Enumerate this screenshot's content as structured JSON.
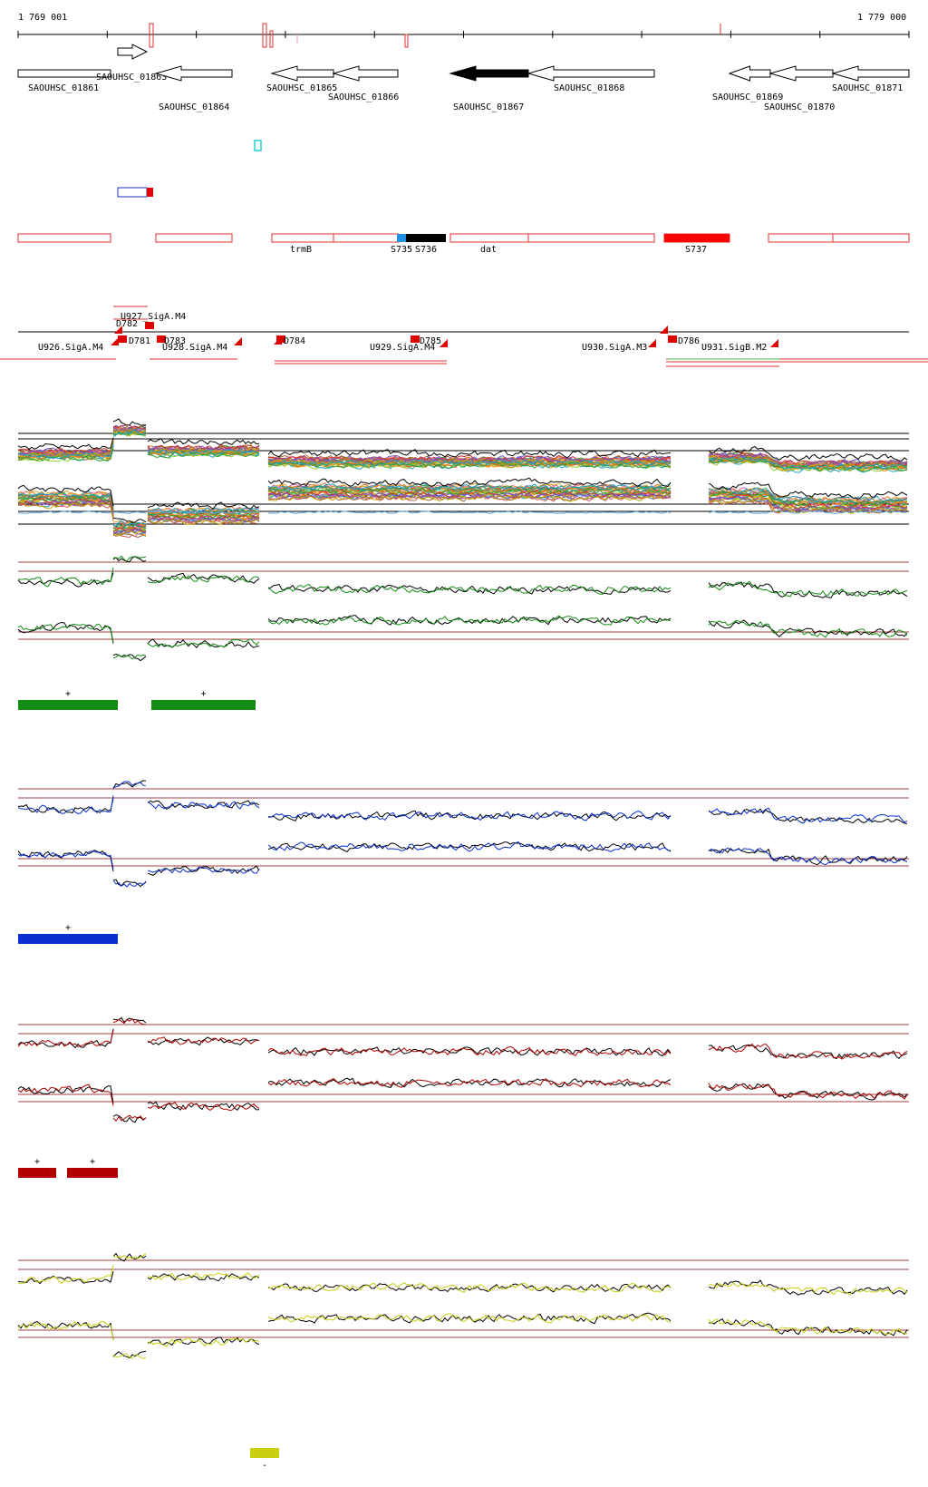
{
  "coords": {
    "start": "1 769 001",
    "end": "1 779 000"
  },
  "genes": [
    {
      "name": "SAOUHSC_01861",
      "dir": "none",
      "style": "outline"
    },
    {
      "name": "SAOUHSC_01863",
      "dir": "right",
      "style": "outline"
    },
    {
      "name": "SAOUHSC_01864",
      "dir": "left",
      "style": "outline"
    },
    {
      "name": "SAOUHSC_01865",
      "dir": "left",
      "style": "outline"
    },
    {
      "name": "SAOUHSC_01866",
      "dir": "left",
      "style": "outline"
    },
    {
      "name": "SAOUHSC_01867",
      "dir": "left",
      "style": "filled"
    },
    {
      "name": "SAOUHSC_01868",
      "dir": "left",
      "style": "outline"
    },
    {
      "name": "SAOUHSC_01869",
      "dir": "left",
      "style": "outline"
    },
    {
      "name": "SAOUHSC_01870",
      "dir": "left",
      "style": "outline"
    },
    {
      "name": "SAOUHSC_01871",
      "dir": "left",
      "style": "outline"
    }
  ],
  "region_labels": [
    "trmB",
    "S735",
    "S736",
    "dat",
    "S737"
  ],
  "feature_labels": [
    "U927_SigA.M4",
    "D782",
    "D781",
    "D783",
    "U926.SigA.M4",
    "U928.SigA.M4",
    "D784",
    "D785",
    "U929.SigA.M4",
    "U930.SigA.M3",
    "D786",
    "U931.SigB.M2"
  ],
  "colors": {
    "outline": "#e03030",
    "dark_red": "#aa0000",
    "green": "#138c13",
    "blue": "#0a2fd0",
    "crimson": "#b00000",
    "yellow": "#c8d010",
    "gridline": "#a04040",
    "cyan": "#20d0d0"
  },
  "panels": [
    {
      "color": "green",
      "segment_signs": [
        "+",
        "+"
      ]
    },
    {
      "color": "blue",
      "segment_signs": [
        "+"
      ]
    },
    {
      "color": "crimson",
      "segment_signs": [
        "+",
        "+"
      ]
    },
    {
      "color": "yellow",
      "segment_signs": [
        "-"
      ]
    }
  ]
}
